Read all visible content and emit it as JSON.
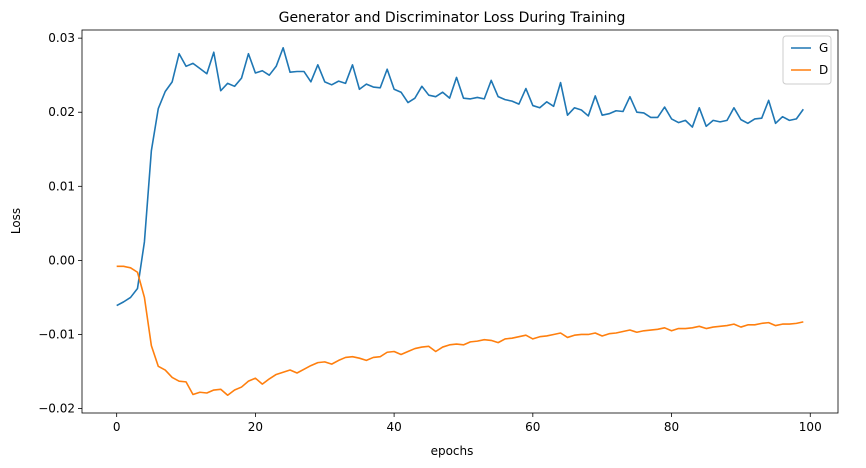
{
  "chart_data": {
    "type": "line",
    "title": "Generator and Discriminator Loss During Training",
    "xlabel": "epochs",
    "ylabel": "Loss",
    "xlim": [
      -5,
      104
    ],
    "ylim": [
      -0.0206,
      0.0311
    ],
    "xticks": [
      0,
      20,
      40,
      60,
      80,
      100
    ],
    "xtick_labels": [
      "0",
      "20",
      "40",
      "60",
      "80",
      "100"
    ],
    "yticks": [
      -0.02,
      -0.01,
      0.0,
      0.01,
      0.02,
      0.03
    ],
    "ytick_labels": [
      "−0.02",
      "−0.01",
      "0.00",
      "0.01",
      "0.02",
      "0.03"
    ],
    "grid": false,
    "legend": "top-right",
    "series": [
      {
        "name": "G",
        "color": "#1f77b4",
        "values": [
          -0.0061,
          -0.0056,
          -0.005,
          -0.0038,
          0.0025,
          0.0148,
          0.0205,
          0.0228,
          0.0241,
          0.0279,
          0.0262,
          0.0266,
          0.0259,
          0.0252,
          0.0281,
          0.0229,
          0.0239,
          0.0235,
          0.0246,
          0.0279,
          0.0253,
          0.0256,
          0.025,
          0.0262,
          0.0287,
          0.0254,
          0.0255,
          0.0255,
          0.0241,
          0.0264,
          0.0241,
          0.0237,
          0.0242,
          0.0239,
          0.0264,
          0.0231,
          0.0238,
          0.0234,
          0.0233,
          0.0258,
          0.0231,
          0.0227,
          0.0213,
          0.0219,
          0.0235,
          0.0223,
          0.0221,
          0.0227,
          0.0219,
          0.0247,
          0.0219,
          0.0218,
          0.022,
          0.0218,
          0.0243,
          0.0221,
          0.0217,
          0.0215,
          0.0211,
          0.0232,
          0.0209,
          0.0206,
          0.0214,
          0.0208,
          0.024,
          0.0196,
          0.0206,
          0.0203,
          0.0195,
          0.0222,
          0.0196,
          0.0198,
          0.0202,
          0.0201,
          0.0221,
          0.02,
          0.0199,
          0.0193,
          0.0193,
          0.0207,
          0.0191,
          0.0186,
          0.0189,
          0.018,
          0.0206,
          0.0181,
          0.0189,
          0.0187,
          0.0189,
          0.0206,
          0.019,
          0.0185,
          0.0191,
          0.0192,
          0.0216,
          0.0185,
          0.0194,
          0.0189,
          0.0191,
          0.0204
        ]
      },
      {
        "name": "D",
        "color": "#ff7f0e",
        "values": [
          -0.0008,
          -0.0008,
          -0.001,
          -0.0016,
          -0.005,
          -0.0115,
          -0.0143,
          -0.0148,
          -0.0158,
          -0.0163,
          -0.0164,
          -0.0181,
          -0.0178,
          -0.0179,
          -0.0175,
          -0.0174,
          -0.0182,
          -0.0175,
          -0.0171,
          -0.0163,
          -0.0159,
          -0.0167,
          -0.016,
          -0.0154,
          -0.0151,
          -0.0148,
          -0.0152,
          -0.0147,
          -0.0142,
          -0.0138,
          -0.0137,
          -0.014,
          -0.0135,
          -0.0131,
          -0.013,
          -0.0132,
          -0.0135,
          -0.0131,
          -0.013,
          -0.0124,
          -0.0123,
          -0.0127,
          -0.0123,
          -0.0119,
          -0.0117,
          -0.0116,
          -0.0123,
          -0.0117,
          -0.0114,
          -0.0113,
          -0.0114,
          -0.011,
          -0.0109,
          -0.0107,
          -0.0108,
          -0.0111,
          -0.0106,
          -0.0105,
          -0.0103,
          -0.0101,
          -0.0106,
          -0.0103,
          -0.0102,
          -0.01,
          -0.0098,
          -0.0104,
          -0.0101,
          -0.01,
          -0.01,
          -0.0098,
          -0.0102,
          -0.0099,
          -0.0098,
          -0.0096,
          -0.0094,
          -0.0097,
          -0.0095,
          -0.0094,
          -0.0093,
          -0.0091,
          -0.0095,
          -0.0092,
          -0.0092,
          -0.0091,
          -0.0089,
          -0.0092,
          -0.009,
          -0.0089,
          -0.0088,
          -0.0086,
          -0.009,
          -0.0087,
          -0.0087,
          -0.0085,
          -0.0084,
          -0.0088,
          -0.0086,
          -0.0086,
          -0.0085,
          -0.0083
        ]
      }
    ]
  }
}
